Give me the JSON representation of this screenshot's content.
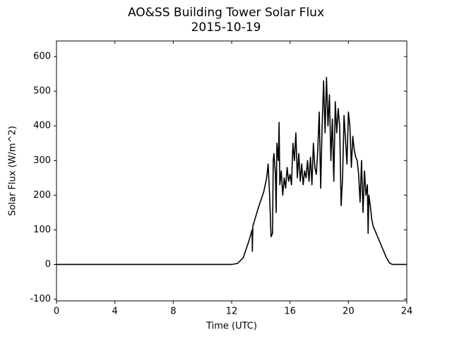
{
  "chart_data": {
    "type": "line",
    "title": "AO&SS Building Tower Solar Flux",
    "subtitle": "2015-10-19",
    "x_label": "Time (UTC)",
    "y_label": "Solar Flux (W/m^2)",
    "xlim": [
      0,
      24
    ],
    "xticks": [
      0,
      4,
      8,
      12,
      16,
      20,
      24
    ],
    "ylim": [
      -105,
      645
    ],
    "yticks": [
      -100,
      0,
      100,
      200,
      300,
      400,
      500,
      600
    ],
    "grid": false,
    "x": [
      0,
      12,
      12.4,
      12.8,
      13.2,
      13.4,
      13.42,
      13.45,
      13.8,
      14.2,
      14.4,
      14.5,
      14.6,
      14.7,
      14.8,
      14.85,
      14.9,
      15.0,
      15.05,
      15.1,
      15.2,
      15.25,
      15.3,
      15.4,
      15.5,
      15.6,
      15.7,
      15.8,
      15.9,
      16.0,
      16.1,
      16.2,
      16.3,
      16.4,
      16.5,
      16.6,
      16.7,
      16.8,
      16.9,
      17.0,
      17.1,
      17.2,
      17.3,
      17.4,
      17.5,
      17.6,
      17.7,
      17.8,
      17.9,
      18.0,
      18.1,
      18.2,
      18.3,
      18.4,
      18.5,
      18.6,
      18.7,
      18.8,
      18.9,
      19.0,
      19.1,
      19.2,
      19.3,
      19.4,
      19.5,
      19.6,
      19.7,
      19.8,
      19.9,
      20.0,
      20.1,
      20.2,
      20.3,
      20.4,
      20.5,
      20.6,
      20.7,
      20.8,
      20.9,
      21.0,
      21.1,
      21.2,
      21.3,
      21.35,
      21.4,
      21.5,
      21.6,
      21.7,
      21.8,
      22.0,
      22.2,
      22.4,
      22.6,
      22.8,
      23.0,
      24
    ],
    "series": [
      {
        "color": "#000000",
        "values": [
          0,
          0,
          3,
          20,
          70,
          100,
          38,
          110,
          160,
          210,
          250,
          290,
          200,
          80,
          90,
          300,
          320,
          260,
          150,
          350,
          300,
          410,
          230,
          270,
          200,
          250,
          220,
          280,
          240,
          260,
          230,
          350,
          300,
          380,
          250,
          320,
          240,
          290,
          230,
          270,
          250,
          300,
          240,
          310,
          230,
          350,
          280,
          260,
          330,
          440,
          220,
          400,
          530,
          380,
          540,
          400,
          490,
          300,
          420,
          240,
          470,
          380,
          450,
          400,
          170,
          250,
          430,
          360,
          290,
          440,
          400,
          280,
          370,
          330,
          310,
          300,
          260,
          180,
          300,
          150,
          270,
          200,
          230,
          90,
          200,
          170,
          130,
          110,
          100,
          80,
          60,
          40,
          20,
          5,
          0,
          0
        ]
      }
    ]
  }
}
